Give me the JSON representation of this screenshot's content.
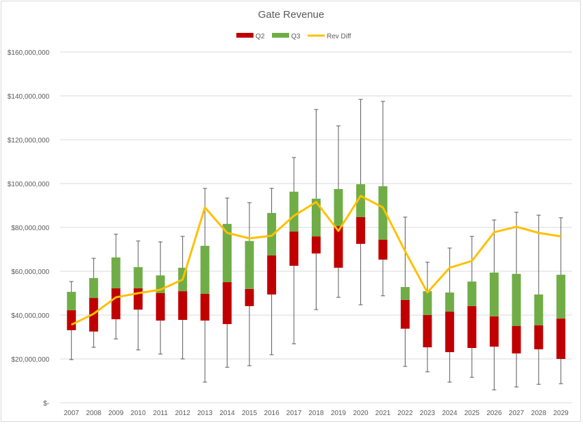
{
  "chart_data": {
    "type": "box",
    "title": "Gate Revenue",
    "legend": {
      "position": "top",
      "entries": [
        {
          "label": "Q2",
          "color": "#c00000",
          "kind": "box"
        },
        {
          "label": "Q3",
          "color": "#70ad47",
          "kind": "box"
        },
        {
          "label": "Rev Diff",
          "color": "#ffc000",
          "kind": "line"
        }
      ]
    },
    "ylim": [
      0,
      160000000
    ],
    "yticks": [
      0,
      20000000,
      40000000,
      60000000,
      80000000,
      100000000,
      120000000,
      140000000,
      160000000
    ],
    "ytick_labels": [
      "$-",
      "$20,000,000",
      "$40,000,000",
      "$60,000,000",
      "$80,000,000",
      "$100,000,000",
      "$120,000,000",
      "$140,000,000",
      "$160,000,000"
    ],
    "grid": true,
    "categories": [
      "2007",
      "2008",
      "2009",
      "2010",
      "2011",
      "2012",
      "2013",
      "2014",
      "2015",
      "2016",
      "2017",
      "2018",
      "2019",
      "2020",
      "2021",
      "2022",
      "2023",
      "2024",
      "2025",
      "2026",
      "2027",
      "2028",
      "2029"
    ],
    "units": "millions USD",
    "min": [
      19.7,
      25.3,
      29.1,
      24.1,
      22.2,
      20.0,
      9.4,
      16.2,
      16.9,
      21.9,
      26.9,
      42.5,
      48.1,
      44.7,
      48.8,
      16.6,
      14.1,
      9.4,
      11.6,
      5.9,
      7.2,
      8.4,
      8.7
    ],
    "q1": [
      33.1,
      32.5,
      38.1,
      42.5,
      37.5,
      37.8,
      37.5,
      35.9,
      44.1,
      49.4,
      62.5,
      68.1,
      61.6,
      72.5,
      65.3,
      33.8,
      25.3,
      23.1,
      25.0,
      25.6,
      22.5,
      24.4,
      20.0
    ],
    "median": [
      42.2,
      47.8,
      52.2,
      52.2,
      50.0,
      50.9,
      49.7,
      55.0,
      51.9,
      67.2,
      78.1,
      75.9,
      80.6,
      84.7,
      74.4,
      46.9,
      40.0,
      41.6,
      44.1,
      39.4,
      35.0,
      35.3,
      38.4
    ],
    "q3": [
      50.6,
      56.9,
      66.3,
      61.9,
      58.1,
      61.6,
      71.6,
      81.6,
      73.8,
      86.6,
      96.3,
      93.1,
      97.5,
      99.7,
      98.8,
      52.8,
      50.9,
      50.3,
      55.3,
      59.4,
      58.8,
      49.4,
      58.4
    ],
    "max": [
      55.3,
      65.9,
      76.9,
      73.8,
      73.4,
      75.9,
      97.8,
      93.4,
      91.3,
      97.8,
      111.9,
      133.8,
      126.3,
      138.4,
      137.5,
      84.7,
      64.1,
      70.6,
      75.9,
      83.4,
      86.9,
      85.6,
      84.4
    ],
    "rev_diff": [
      35.6,
      40.6,
      48.1,
      50.0,
      51.6,
      56.2,
      89.1,
      77.5,
      75.0,
      76.2,
      85.3,
      91.6,
      78.4,
      94.4,
      89.1,
      69.1,
      50.3,
      61.6,
      64.7,
      77.8,
      80.3,
      77.5,
      75.9
    ]
  }
}
